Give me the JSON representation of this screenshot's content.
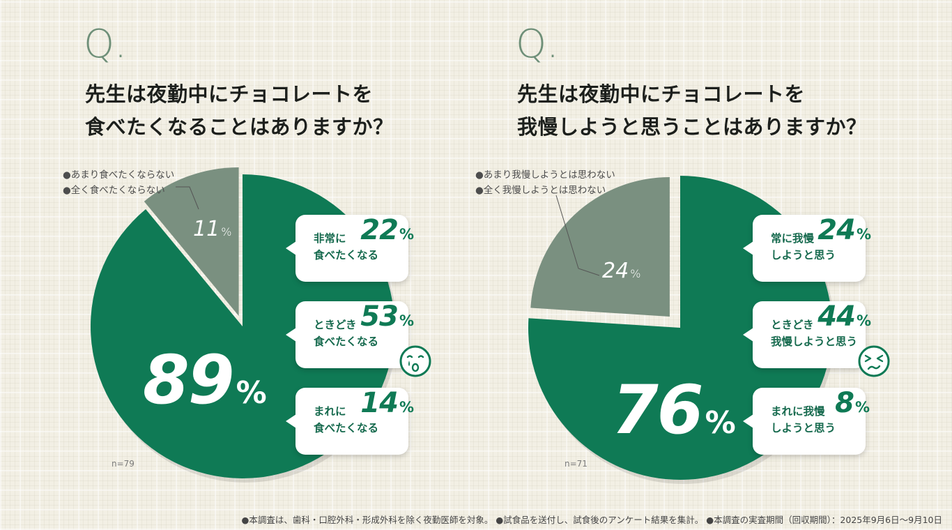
{
  "chart_data": [
    {
      "type": "pie",
      "title": "先生は夜勤中にチョコレートを食べたくなることはありますか？",
      "title_lines": [
        "先生は夜勤中にチョコレートを",
        "食べたくなることはありますか？"
      ],
      "q_mark": "Q.",
      "sample": "n=79",
      "slices": [
        {
          "name": "あまり食べたくならない\n全く食べたくならない",
          "value": 11,
          "color": "#7a9080"
        },
        {
          "name": "食べたくなる",
          "value": 89,
          "color": "#0f7a55"
        }
      ],
      "big_label": {
        "value": "89",
        "unit": "%"
      },
      "small_label": {
        "value": "11",
        "unit": "%"
      },
      "callout_lines": [
        "●あまり食べたくならない",
        "●全く食べたくならない"
      ],
      "breakdown": [
        {
          "label_lines": [
            "非常に",
            "食べたくなる"
          ],
          "value": "22",
          "unit": "%"
        },
        {
          "label_lines": [
            "ときどき",
            "食べたくなる"
          ],
          "value": "53",
          "unit": "%"
        },
        {
          "label_lines": [
            "まれに",
            "食べたくなる"
          ],
          "value": "14",
          "unit": "%"
        }
      ],
      "face_icon": "crying-face-icon"
    },
    {
      "type": "pie",
      "title": "先生は夜勤中にチョコレートを我慢しようと思うことはありますか？",
      "title_lines": [
        "先生は夜勤中にチョコレートを",
        "我慢しようと思うことはありますか？"
      ],
      "q_mark": "Q.",
      "sample": "n=71",
      "slices": [
        {
          "name": "あまり我慢しようとは思わない\n全く我慢しようとは思わない",
          "value": 24,
          "color": "#7a9080"
        },
        {
          "name": "我慢しようと思う",
          "value": 76,
          "color": "#0f7a55"
        }
      ],
      "big_label": {
        "value": "76",
        "unit": "%"
      },
      "small_label": {
        "value": "24",
        "unit": "%"
      },
      "callout_lines": [
        "●あまり我慢しようとは思わない",
        "●全く我慢しようとは思わない"
      ],
      "breakdown": [
        {
          "label_lines": [
            "常に我慢",
            "しようと思う"
          ],
          "value": "24",
          "unit": "%"
        },
        {
          "label_lines": [
            "ときどき",
            "我慢しようと思う"
          ],
          "value": "44",
          "unit": "%"
        },
        {
          "label_lines": [
            "まれに我慢",
            "しようと思う"
          ],
          "value": "8",
          "unit": "%"
        }
      ],
      "face_icon": "frustrated-face-icon"
    }
  ],
  "footnote": "●本調査は、歯科・口腔外科・形成外科を除く夜勤医師を対象。 ●試食品を送付し、試食後のアンケート結果を集計。 ●本調査の実査期間（回収期間）：2025年9月6日〜9月10日"
}
